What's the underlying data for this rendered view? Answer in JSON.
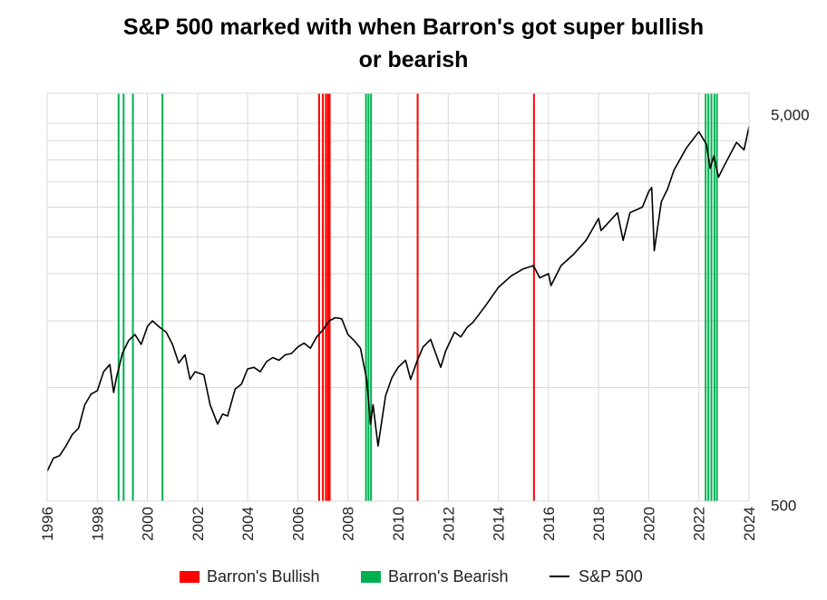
{
  "chart_data": {
    "type": "line",
    "title_lines": [
      "S&P  500 marked with when Barron's got super bullish",
      "or bearish"
    ],
    "y_scale": "log",
    "ylim": [
      500,
      6000
    ],
    "xlim": [
      1996,
      2024
    ],
    "y_ticks": [
      500,
      5000
    ],
    "y_tick_labels": [
      "500",
      "5,000"
    ],
    "y_minor_ticks": [
      1000,
      1500,
      2000,
      2500,
      3000,
      3500,
      4000,
      4500
    ],
    "x_ticks": [
      1996,
      1998,
      2000,
      2002,
      2004,
      2006,
      2008,
      2010,
      2012,
      2014,
      2016,
      2018,
      2020,
      2022,
      2024
    ],
    "x_tick_labels": [
      "1996",
      "1998",
      "2000",
      "2002",
      "2004",
      "2006",
      "2008",
      "2010",
      "2012",
      "2014",
      "2016",
      "2018",
      "2020",
      "2022",
      "2024"
    ],
    "grid": true,
    "legend_position": "bottom",
    "legend": [
      {
        "name": "Barron's Bullish",
        "color": "#ff0000",
        "kind": "swatch"
      },
      {
        "name": "Barron's Bearish",
        "color": "#00b050",
        "kind": "swatch"
      },
      {
        "name": "S&P 500",
        "color": "#000000",
        "kind": "line"
      }
    ],
    "bullish_dates": [
      2006.85,
      2007.0,
      2007.12,
      2007.2,
      2007.27,
      2010.78,
      2015.42
    ],
    "bearish_dates": [
      1998.85,
      1999.05,
      1999.42,
      2000.6,
      2008.72,
      2008.82,
      2008.92,
      2022.27,
      2022.38,
      2022.5,
      2022.62,
      2022.72
    ],
    "series": [
      {
        "name": "S&P 500",
        "color": "#000000",
        "x": [
          1996.0,
          1996.25,
          1996.5,
          1996.75,
          1997.0,
          1997.25,
          1997.5,
          1997.75,
          1998.0,
          1998.25,
          1998.5,
          1998.65,
          1998.75,
          1999.0,
          1999.25,
          1999.5,
          1999.75,
          2000.0,
          2000.2,
          2000.5,
          2000.75,
          2001.0,
          2001.25,
          2001.5,
          2001.7,
          2001.9,
          2002.25,
          2002.5,
          2002.8,
          2003.0,
          2003.2,
          2003.5,
          2003.75,
          2004.0,
          2004.25,
          2004.5,
          2004.75,
          2005.0,
          2005.25,
          2005.5,
          2005.75,
          2006.0,
          2006.25,
          2006.5,
          2006.75,
          2007.0,
          2007.25,
          2007.5,
          2007.75,
          2008.0,
          2008.25,
          2008.5,
          2008.75,
          2008.9,
          2009.0,
          2009.2,
          2009.5,
          2009.75,
          2010.0,
          2010.3,
          2010.5,
          2010.75,
          2011.0,
          2011.3,
          2011.7,
          2011.9,
          2012.25,
          2012.5,
          2012.75,
          2013.0,
          2013.5,
          2014.0,
          2014.5,
          2015.0,
          2015.4,
          2015.65,
          2016.0,
          2016.1,
          2016.5,
          2017.0,
          2017.5,
          2018.0,
          2018.1,
          2018.75,
          2018.98,
          2019.25,
          2019.75,
          2020.0,
          2020.12,
          2020.22,
          2020.5,
          2020.75,
          2021.0,
          2021.5,
          2022.0,
          2022.3,
          2022.45,
          2022.6,
          2022.78,
          2023.0,
          2023.5,
          2023.8,
          2024.0
        ],
        "values": [
          600,
          650,
          660,
          700,
          750,
          780,
          900,
          960,
          980,
          1100,
          1150,
          970,
          1050,
          1230,
          1330,
          1380,
          1300,
          1450,
          1500,
          1440,
          1400,
          1300,
          1160,
          1220,
          1050,
          1100,
          1080,
          900,
          800,
          850,
          840,
          990,
          1020,
          1120,
          1130,
          1100,
          1170,
          1200,
          1180,
          1220,
          1230,
          1280,
          1310,
          1270,
          1360,
          1420,
          1500,
          1530,
          1520,
          1380,
          1330,
          1270,
          1050,
          800,
          900,
          700,
          950,
          1060,
          1130,
          1180,
          1050,
          1170,
          1280,
          1340,
          1130,
          1250,
          1400,
          1360,
          1440,
          1490,
          1650,
          1840,
          1970,
          2060,
          2100,
          1950,
          2000,
          1860,
          2100,
          2250,
          2450,
          2800,
          2600,
          2900,
          2450,
          2900,
          3000,
          3300,
          3380,
          2300,
          3100,
          3350,
          3750,
          4300,
          4750,
          4400,
          3800,
          4100,
          3600,
          3850,
          4450,
          4250,
          4900
        ]
      }
    ]
  }
}
